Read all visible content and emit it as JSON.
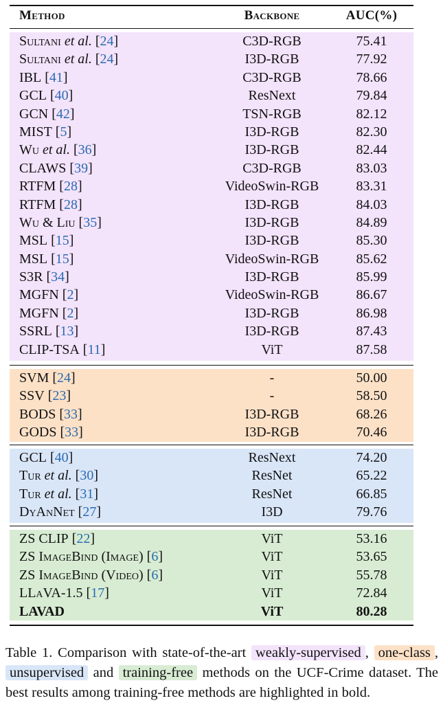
{
  "table": {
    "headers": {
      "method": "Method",
      "backbone": "Backbone",
      "auc": "AUC(%)"
    },
    "groups": [
      {
        "key": "weakly-supervised",
        "color": "#f3e3fb",
        "rows": [
          {
            "method": "Sultani",
            "suffix": " et al.",
            "ref": "24",
            "backbone": "C3D-RGB",
            "auc": "75.41"
          },
          {
            "method": "Sultani",
            "suffix": " et al.",
            "ref": "24",
            "backbone": "I3D-RGB",
            "auc": "77.92"
          },
          {
            "method": "IBL",
            "ref": "41",
            "backbone": "C3D-RGB",
            "auc": "78.66"
          },
          {
            "method": "GCL",
            "ref": "40",
            "backbone": "ResNext",
            "auc": "79.84"
          },
          {
            "method": "GCN",
            "ref": "42",
            "backbone": "TSN-RGB",
            "auc": "82.12"
          },
          {
            "method": "MIST",
            "ref": "5",
            "backbone": "I3D-RGB",
            "auc": "82.30"
          },
          {
            "method": "Wu",
            "suffix": " et al.",
            "ref": "36",
            "backbone": "I3D-RGB",
            "auc": "82.44"
          },
          {
            "method": "CLAWS",
            "ref": "39",
            "backbone": "C3D-RGB",
            "auc": "83.03"
          },
          {
            "method": "RTFM",
            "ref": "28",
            "backbone": "VideoSwin-RGB",
            "auc": "83.31"
          },
          {
            "method": "RTFM",
            "ref": "28",
            "backbone": "I3D-RGB",
            "auc": "84.03"
          },
          {
            "method": "Wu & Liu",
            "ref": "35",
            "backbone": "I3D-RGB",
            "auc": "84.89"
          },
          {
            "method": "MSL",
            "ref": "15",
            "backbone": "I3D-RGB",
            "auc": "85.30"
          },
          {
            "method": "MSL",
            "ref": "15",
            "backbone": "VideoSwin-RGB",
            "auc": "85.62"
          },
          {
            "method": "S3R",
            "ref": "34",
            "backbone": "I3D-RGB",
            "auc": "85.99"
          },
          {
            "method": "MGFN",
            "ref": "2",
            "backbone": "VideoSwin-RGB",
            "auc": "86.67"
          },
          {
            "method": "MGFN",
            "ref": "2",
            "backbone": "I3D-RGB",
            "auc": "86.98"
          },
          {
            "method": "SSRL",
            "ref": "13",
            "backbone": "I3D-RGB",
            "auc": "87.43"
          },
          {
            "method": "CLIP-TSA",
            "ref": "11",
            "backbone": "ViT",
            "auc": "87.58"
          }
        ]
      },
      {
        "key": "one-class",
        "color": "#fce1c7",
        "rows": [
          {
            "method": "SVM",
            "ref": "24",
            "backbone": "-",
            "auc": "50.00"
          },
          {
            "method": "SSV",
            "ref": "23",
            "backbone": "-",
            "auc": "58.50"
          },
          {
            "method": "BODS",
            "ref": "33",
            "backbone": "I3D-RGB",
            "auc": "68.26"
          },
          {
            "method": "GODS",
            "ref": "33",
            "backbone": "I3D-RGB",
            "auc": "70.46"
          }
        ]
      },
      {
        "key": "unsupervised",
        "color": "#d9e6f8",
        "rows": [
          {
            "method": "GCL",
            "ref": "40",
            "backbone": "ResNext",
            "auc": "74.20"
          },
          {
            "method": "Tur",
            "suffix": " et al.",
            "ref": "30",
            "backbone": "ResNet",
            "auc": "65.22"
          },
          {
            "method": "Tur",
            "suffix": " et al.",
            "ref": "31",
            "backbone": "ResNet",
            "auc": "66.85"
          },
          {
            "method": "DyAnNet",
            "ref": "27",
            "backbone": "I3D",
            "auc": "79.76"
          }
        ]
      },
      {
        "key": "training-free",
        "color": "#d8ecd3",
        "rows": [
          {
            "method": "ZS CLIP",
            "ref": "22",
            "backbone": "ViT",
            "auc": "53.16"
          },
          {
            "method": "ZS ImageBind (Image)",
            "ref": "6",
            "backbone": "ViT",
            "auc": "53.65"
          },
          {
            "method": "ZS ImageBind (Video)",
            "ref": "6",
            "backbone": "ViT",
            "auc": "55.78"
          },
          {
            "method": "LLaVA-1.5",
            "ref": "17",
            "backbone": "ViT",
            "auc": "72.84"
          },
          {
            "method": "LAVAD",
            "backbone": "ViT",
            "auc": "80.28",
            "bold": true
          }
        ]
      }
    ]
  },
  "caption": {
    "prefix": "Table 1.  Comparison with state-of-the-art",
    "weak": "weakly-supervised",
    "one": "one-class",
    "unsup": "unsupervised",
    "and": "and",
    "free": "training-free",
    "suffix": "methods on the UCF-Crime dataset. The best results among training-free methods are highlighted in bold."
  }
}
